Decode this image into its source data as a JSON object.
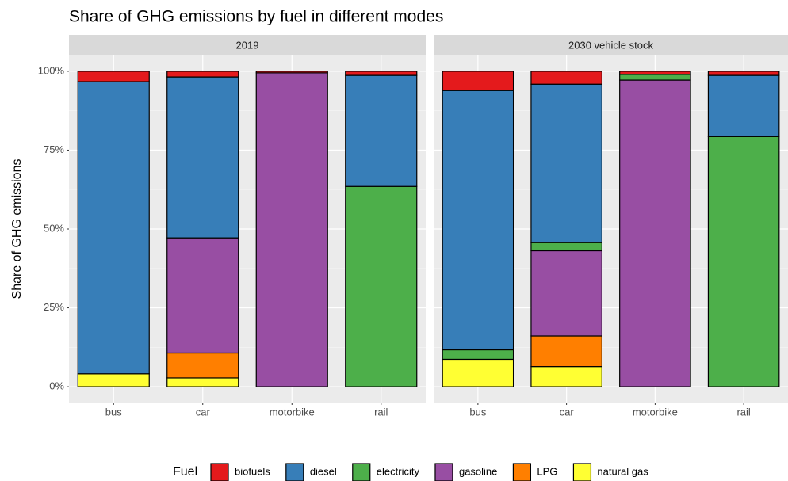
{
  "title": "Share of GHG emissions by fuel in different modes",
  "y_label": "Share of GHG emissions",
  "legend_title": "Fuel",
  "chart_data": [
    {
      "type": "bar",
      "stacked": true,
      "title": "2019",
      "categories": [
        "bus",
        "car",
        "motorbike",
        "rail"
      ],
      "ylim": [
        -5,
        105
      ],
      "yticks": [
        {
          "value": 0,
          "label": "0%"
        },
        {
          "value": 25,
          "label": "25%"
        },
        {
          "value": 50,
          "label": "50%"
        },
        {
          "value": 75,
          "label": "75%"
        },
        {
          "value": 100,
          "label": "100%"
        }
      ],
      "grid": true,
      "series": [
        {
          "name": "biofuels",
          "color": "#e41a1c",
          "values": [
            3.3,
            1.8,
            0.5,
            1.3
          ]
        },
        {
          "name": "diesel",
          "color": "#377eb8",
          "values": [
            92.6,
            51,
            0,
            35.2
          ]
        },
        {
          "name": "electricity",
          "color": "#4daf4a",
          "values": [
            0,
            0,
            0,
            63.5
          ]
        },
        {
          "name": "gasoline",
          "color": "#984ea3",
          "values": [
            0,
            36.5,
            99.5,
            0
          ]
        },
        {
          "name": "LPG",
          "color": "#ff7f00",
          "values": [
            0,
            7.9,
            0,
            0
          ]
        },
        {
          "name": "natural gas",
          "color": "#ffff33",
          "values": [
            4.1,
            2.8,
            0,
            0
          ]
        }
      ]
    },
    {
      "type": "bar",
      "stacked": true,
      "title": "2030 vehicle stock",
      "categories": [
        "bus",
        "car",
        "motorbike",
        "rail"
      ],
      "series": [
        {
          "name": "biofuels",
          "color": "#e41a1c",
          "values": [
            6.1,
            4.1,
            1,
            1.3
          ]
        },
        {
          "name": "diesel",
          "color": "#377eb8",
          "values": [
            82.2,
            50.2,
            0,
            19.4
          ]
        },
        {
          "name": "electricity",
          "color": "#4daf4a",
          "values": [
            3,
            2.6,
            1.8,
            79.3
          ]
        },
        {
          "name": "gasoline",
          "color": "#984ea3",
          "values": [
            0,
            27,
            97.2,
            0
          ]
        },
        {
          "name": "LPG",
          "color": "#ff7f00",
          "values": [
            0,
            9.7,
            0,
            0
          ]
        },
        {
          "name": "natural gas",
          "color": "#ffff33",
          "values": [
            8.7,
            6.4,
            0,
            0
          ]
        }
      ]
    }
  ]
}
